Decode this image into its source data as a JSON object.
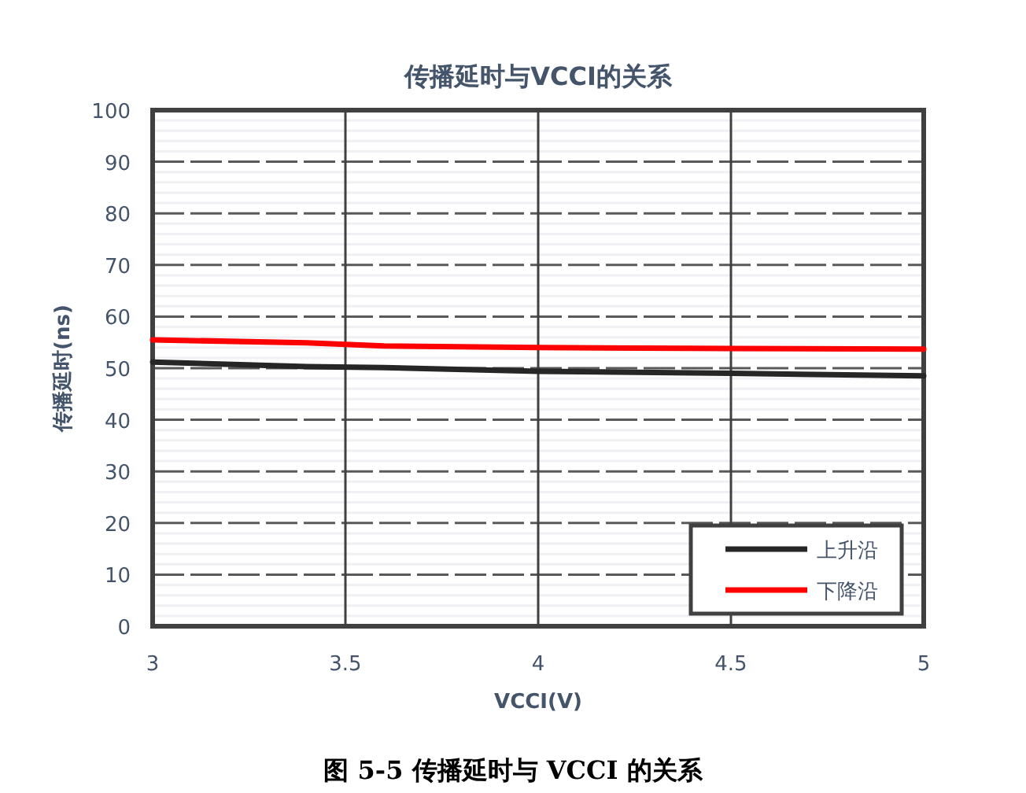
{
  "chart_data": {
    "type": "line",
    "title": "传播延时与VCCI的关系",
    "xlabel": "VCCI(V)",
    "ylabel": "传播延时(ns)",
    "annotations": [
      "图 5-5  传播延时与 VCCI 的关系"
    ],
    "xlim": [
      3,
      5
    ],
    "xticks": [
      3,
      3.5,
      4,
      4.5,
      5
    ],
    "ylim": [
      0,
      100
    ],
    "yticks": [
      0,
      10,
      20,
      30,
      40,
      50,
      60,
      70,
      80,
      90,
      100
    ],
    "grid": true,
    "legend": "bottom right",
    "marker": "none",
    "line_style": "solid",
    "series": [
      {
        "name": "上升沿",
        "color": "#262626",
        "x": [
          3,
          3.4,
          3.6,
          4,
          4.5,
          5
        ],
        "values": [
          51.2,
          50.3,
          50.1,
          49.4,
          49,
          48.5
        ]
      },
      {
        "name": "下降沿",
        "color": "#ff0000",
        "x": [
          3,
          3.4,
          3.6,
          4,
          4.5,
          5
        ],
        "values": [
          55.5,
          54.9,
          54.3,
          54,
          53.8,
          53.7
        ]
      }
    ]
  }
}
